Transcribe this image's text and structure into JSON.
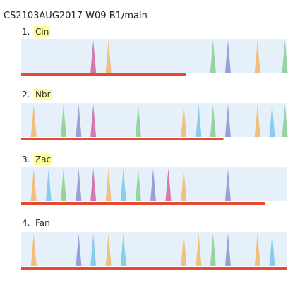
{
  "repo_title": "CS2103AUG2017-W09-B1/main",
  "lanes": [
    {
      "number": "1.",
      "name": "Cin",
      "highlighted": true,
      "progress": 0.62,
      "spikes": [
        {
          "pos": 0.271,
          "color": "#d678b0"
        },
        {
          "pos": 0.328,
          "color": "#f0c080"
        },
        {
          "pos": 0.721,
          "color": "#95d3a0"
        },
        {
          "pos": 0.777,
          "color": "#9b9fd8"
        },
        {
          "pos": 0.888,
          "color": "#f0c080"
        },
        {
          "pos": 0.991,
          "color": "#95d3a0"
        }
      ]
    },
    {
      "number": "2.",
      "name": "Nbr",
      "highlighted": true,
      "progress": 0.76,
      "spikes": [
        {
          "pos": 0.047,
          "color": "#f0c080"
        },
        {
          "pos": 0.159,
          "color": "#95d3a0"
        },
        {
          "pos": 0.216,
          "color": "#9b9fd8"
        },
        {
          "pos": 0.271,
          "color": "#d678b0"
        },
        {
          "pos": 0.44,
          "color": "#95d3a0"
        },
        {
          "pos": 0.611,
          "color": "#f0c080"
        },
        {
          "pos": 0.667,
          "color": "#88ccf0"
        },
        {
          "pos": 0.721,
          "color": "#95d3a0"
        },
        {
          "pos": 0.777,
          "color": "#9b9fd8"
        },
        {
          "pos": 0.888,
          "color": "#f0c080"
        },
        {
          "pos": 0.943,
          "color": "#88ccf0"
        },
        {
          "pos": 0.991,
          "color": "#95d3a0"
        }
      ]
    },
    {
      "number": "3.",
      "name": "Zac",
      "highlighted": true,
      "progress": 0.915,
      "spikes": [
        {
          "pos": 0.047,
          "color": "#f0c080"
        },
        {
          "pos": 0.103,
          "color": "#88ccf0"
        },
        {
          "pos": 0.159,
          "color": "#95d3a0"
        },
        {
          "pos": 0.216,
          "color": "#9b9fd8"
        },
        {
          "pos": 0.271,
          "color": "#d678b0"
        },
        {
          "pos": 0.328,
          "color": "#f0c080"
        },
        {
          "pos": 0.384,
          "color": "#88ccf0"
        },
        {
          "pos": 0.44,
          "color": "#95d3a0"
        },
        {
          "pos": 0.496,
          "color": "#9b9fd8"
        },
        {
          "pos": 0.553,
          "color": "#d678b0"
        },
        {
          "pos": 0.611,
          "color": "#f0c080"
        },
        {
          "pos": 0.777,
          "color": "#9b9fd8"
        }
      ]
    },
    {
      "number": "4.",
      "name": "Fan",
      "highlighted": false,
      "progress": 1.0,
      "spikes": [
        {
          "pos": 0.047,
          "color": "#f0c080"
        },
        {
          "pos": 0.216,
          "color": "#9b9fd8"
        },
        {
          "pos": 0.271,
          "color": "#88ccf0"
        },
        {
          "pos": 0.328,
          "color": "#f0c080"
        },
        {
          "pos": 0.384,
          "color": "#88ccf0"
        },
        {
          "pos": 0.611,
          "color": "#f0c080"
        },
        {
          "pos": 0.667,
          "color": "#f0c080"
        },
        {
          "pos": 0.721,
          "color": "#95d3a0"
        },
        {
          "pos": 0.777,
          "color": "#9b9fd8"
        },
        {
          "pos": 0.888,
          "color": "#f0c080"
        },
        {
          "pos": 0.943,
          "color": "#88ccf0"
        }
      ]
    }
  ],
  "colors": {
    "lane_background": "#e6f0fa",
    "progress_bar": "#e34c31",
    "highlight": "#ffff99"
  }
}
